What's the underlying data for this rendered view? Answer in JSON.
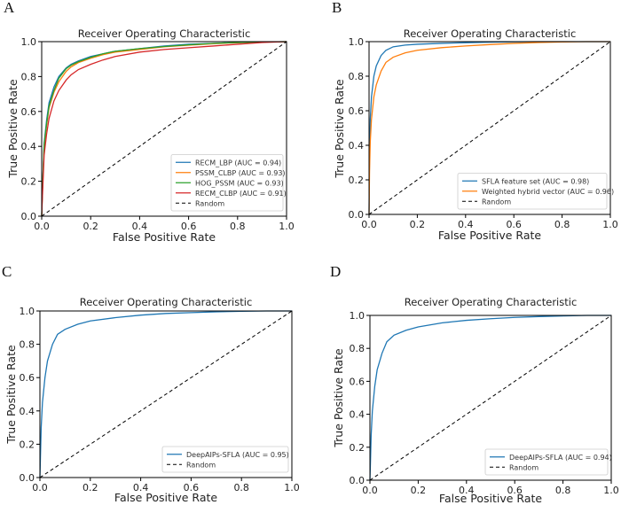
{
  "figure": {
    "panels": [
      "A",
      "B",
      "C",
      "D"
    ]
  },
  "chart_data": [
    {
      "panel": "A",
      "type": "line",
      "title": "Receiver Operating Characteristic",
      "xlabel": "False Positive Rate",
      "ylabel": "True Positive Rate",
      "xlim": [
        0,
        1
      ],
      "ylim": [
        0,
        1
      ],
      "xticks": [
        "0.0",
        "0.2",
        "0.4",
        "0.6",
        "0.8",
        "1.0"
      ],
      "yticks": [
        "0.0",
        "0.2",
        "0.4",
        "0.6",
        "0.8",
        "1.0"
      ],
      "legend_position": "lower-right",
      "series": [
        {
          "name": "RECM_LBP (AUC = 0.94)",
          "color": "#1f77b4",
          "x": [
            0,
            0.002,
            0.01,
            0.02,
            0.03,
            0.05,
            0.07,
            0.1,
            0.12,
            0.15,
            0.2,
            0.25,
            0.3,
            0.4,
            0.5,
            0.6,
            0.7,
            0.8,
            0.9,
            1.0
          ],
          "y": [
            0,
            0.12,
            0.42,
            0.55,
            0.65,
            0.74,
            0.8,
            0.85,
            0.87,
            0.89,
            0.915,
            0.93,
            0.945,
            0.96,
            0.975,
            0.985,
            0.99,
            0.995,
            0.998,
            1.0
          ]
        },
        {
          "name": "PSSM_CLBP (AUC = 0.93)",
          "color": "#ff7f0e",
          "x": [
            0,
            0.002,
            0.01,
            0.02,
            0.03,
            0.05,
            0.07,
            0.1,
            0.12,
            0.15,
            0.2,
            0.25,
            0.3,
            0.4,
            0.5,
            0.6,
            0.7,
            0.8,
            0.9,
            1.0
          ],
          "y": [
            0,
            0.1,
            0.4,
            0.52,
            0.62,
            0.71,
            0.77,
            0.83,
            0.855,
            0.88,
            0.905,
            0.925,
            0.94,
            0.955,
            0.97,
            0.98,
            0.988,
            0.994,
            0.998,
            1.0
          ]
        },
        {
          "name": "HOG_PSSM (AUC = 0.93)",
          "color": "#2ca02c",
          "x": [
            0,
            0.002,
            0.01,
            0.02,
            0.03,
            0.05,
            0.07,
            0.1,
            0.12,
            0.15,
            0.2,
            0.25,
            0.3,
            0.4,
            0.5,
            0.6,
            0.7,
            0.8,
            0.9,
            1.0
          ],
          "y": [
            0,
            0.11,
            0.41,
            0.53,
            0.63,
            0.72,
            0.79,
            0.845,
            0.865,
            0.885,
            0.91,
            0.93,
            0.945,
            0.96,
            0.972,
            0.982,
            0.99,
            0.995,
            0.998,
            1.0
          ]
        },
        {
          "name": "RECM_CLBP (AUC = 0.91)",
          "color": "#d62728",
          "x": [
            0,
            0.002,
            0.01,
            0.02,
            0.03,
            0.05,
            0.07,
            0.1,
            0.12,
            0.15,
            0.2,
            0.25,
            0.3,
            0.4,
            0.5,
            0.6,
            0.7,
            0.8,
            0.9,
            1.0
          ],
          "y": [
            0,
            0.08,
            0.35,
            0.47,
            0.56,
            0.66,
            0.72,
            0.78,
            0.81,
            0.84,
            0.87,
            0.895,
            0.915,
            0.94,
            0.955,
            0.965,
            0.975,
            0.985,
            0.995,
            1.0
          ]
        },
        {
          "name": "Random",
          "color": "#000000",
          "dashed": true,
          "x": [
            0,
            1
          ],
          "y": [
            0,
            1
          ]
        }
      ]
    },
    {
      "panel": "B",
      "type": "line",
      "title": "Receiver Operating Characteristic",
      "xlabel": "False Positive Rate",
      "ylabel": "True Positive Rate",
      "xlim": [
        0,
        1
      ],
      "ylim": [
        0,
        1
      ],
      "xticks": [
        "0.0",
        "0.2",
        "0.4",
        "0.6",
        "0.8",
        "1.0"
      ],
      "yticks": [
        "0.0",
        "0.2",
        "0.4",
        "0.6",
        "0.8",
        "1.0"
      ],
      "legend_position": "lower-right",
      "series": [
        {
          "name": "SFLA feature set (AUC = 0.98)",
          "color": "#1f77b4",
          "x": [
            0,
            0.002,
            0.005,
            0.01,
            0.02,
            0.03,
            0.05,
            0.07,
            0.1,
            0.15,
            0.2,
            0.3,
            0.4,
            0.5,
            0.6,
            0.7,
            0.8,
            0.9,
            1.0
          ],
          "y": [
            0,
            0.35,
            0.55,
            0.68,
            0.8,
            0.86,
            0.92,
            0.95,
            0.97,
            0.98,
            0.985,
            0.99,
            0.994,
            0.997,
            0.999,
            1.0,
            1.0,
            1.0,
            1.0
          ]
        },
        {
          "name": "Weighted hybrid vector (AUC = 0.96)",
          "color": "#ff7f0e",
          "x": [
            0,
            0.002,
            0.005,
            0.01,
            0.02,
            0.03,
            0.05,
            0.07,
            0.1,
            0.15,
            0.2,
            0.3,
            0.4,
            0.5,
            0.6,
            0.7,
            0.8,
            0.9,
            1.0
          ],
          "y": [
            0,
            0.25,
            0.42,
            0.55,
            0.68,
            0.75,
            0.83,
            0.88,
            0.91,
            0.935,
            0.95,
            0.965,
            0.975,
            0.983,
            0.99,
            0.995,
            0.998,
            1.0,
            1.0
          ]
        },
        {
          "name": "Random",
          "color": "#000000",
          "dashed": true,
          "x": [
            0,
            1
          ],
          "y": [
            0,
            1
          ]
        }
      ]
    },
    {
      "panel": "C",
      "type": "line",
      "title": "Receiver Operating Characteristic",
      "xlabel": "False Positive Rate",
      "ylabel": "True Positive Rate",
      "xlim": [
        0,
        1
      ],
      "ylim": [
        0,
        1
      ],
      "xticks": [
        "0.0",
        "0.2",
        "0.4",
        "0.6",
        "0.8",
        "1.0"
      ],
      "yticks": [
        "0.0",
        "0.2",
        "0.4",
        "0.6",
        "0.8",
        "1.0"
      ],
      "legend_position": "lower-right",
      "series": [
        {
          "name": "DeepAIPs-SFLA (AUC = 0.95)",
          "color": "#1f77b4",
          "x": [
            0,
            0.002,
            0.005,
            0.01,
            0.02,
            0.03,
            0.05,
            0.07,
            0.1,
            0.15,
            0.2,
            0.3,
            0.4,
            0.5,
            0.6,
            0.7,
            0.8,
            0.9,
            1.0
          ],
          "y": [
            0,
            0.12,
            0.3,
            0.45,
            0.6,
            0.7,
            0.8,
            0.86,
            0.89,
            0.92,
            0.94,
            0.96,
            0.975,
            0.985,
            0.99,
            0.995,
            0.998,
            1.0,
            1.0
          ]
        },
        {
          "name": "Random",
          "color": "#000000",
          "dashed": true,
          "x": [
            0,
            1
          ],
          "y": [
            0,
            1
          ]
        }
      ]
    },
    {
      "panel": "D",
      "type": "line",
      "title": "Receiver Operating Characteristic",
      "xlabel": "False Positive Rate",
      "ylabel": "True Positive Rate",
      "xlim": [
        0,
        1
      ],
      "ylim": [
        0,
        1
      ],
      "xticks": [
        "0.0",
        "0.2",
        "0.4",
        "0.6",
        "0.8",
        "1.0"
      ],
      "yticks": [
        "0.0",
        "0.2",
        "0.4",
        "0.6",
        "0.8",
        "1.0"
      ],
      "legend_position": "lower-right",
      "series": [
        {
          "name": "DeepAIPs-SFLA (AUC = 0.94)",
          "color": "#1f77b4",
          "x": [
            0,
            0.002,
            0.005,
            0.01,
            0.02,
            0.03,
            0.05,
            0.07,
            0.1,
            0.15,
            0.2,
            0.3,
            0.4,
            0.5,
            0.6,
            0.7,
            0.8,
            0.9,
            1.0
          ],
          "y": [
            0,
            0.1,
            0.27,
            0.42,
            0.57,
            0.67,
            0.77,
            0.84,
            0.88,
            0.91,
            0.93,
            0.955,
            0.97,
            0.98,
            0.988,
            0.993,
            0.997,
            1.0,
            1.0
          ]
        },
        {
          "name": "Random",
          "color": "#000000",
          "dashed": true,
          "x": [
            0,
            1
          ],
          "y": [
            0,
            1
          ]
        }
      ]
    }
  ]
}
